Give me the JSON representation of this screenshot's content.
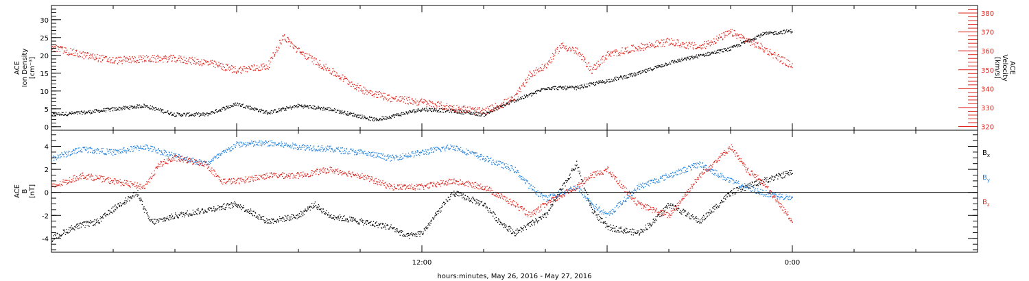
{
  "xaxis": {
    "label": "hours:minutes, May 26, 2016 - May 27, 2016",
    "range_hours": [
      0,
      30
    ],
    "tick_labels": [
      {
        "hour": 12,
        "text": "12:00"
      },
      {
        "hour": 24,
        "text": "0:00"
      }
    ]
  },
  "colors": {
    "black": "#000000",
    "red": "#e0231c",
    "blue": "#1e7fdc"
  },
  "chart_data": [
    {
      "type": "scatter",
      "panel": "top",
      "ylabel_lines": [
        "ACE",
        "Ion Density",
        "[cm⁻³]"
      ],
      "ylim": [
        -1,
        34
      ],
      "yticks": [
        0,
        5,
        10,
        15,
        20,
        25,
        30
      ],
      "y2label_lines": [
        "ACE",
        "Velocity",
        "[km/s]"
      ],
      "y2lim": [
        318,
        384
      ],
      "y2ticks": [
        320,
        330,
        340,
        350,
        360,
        370,
        380
      ],
      "series": [
        {
          "axis": "left",
          "color": "#000000",
          "x": [
            0,
            1,
            2,
            3,
            4,
            5,
            6,
            7,
            8,
            9,
            10,
            10.5,
            11,
            12,
            13,
            14,
            15,
            15.5,
            16,
            17,
            18,
            19,
            20,
            21,
            22,
            23,
            24
          ],
          "y": [
            3.5,
            4.0,
            5.0,
            6.0,
            3.5,
            3.5,
            6.5,
            4.0,
            6.0,
            5.0,
            3.0,
            2.0,
            3.0,
            5.0,
            4.5,
            3.5,
            7.5,
            9.0,
            11.0,
            11.0,
            13.0,
            15.0,
            18.0,
            20.0,
            22.0,
            26.0,
            27.0
          ]
        },
        {
          "axis": "right",
          "color": "#e0231c",
          "x": [
            0,
            1,
            2,
            3,
            4,
            5,
            6,
            7,
            7.5,
            8,
            9,
            10,
            11,
            12,
            13,
            14,
            15,
            15.5,
            16,
            16.5,
            17,
            17.5,
            18,
            19,
            20,
            21,
            22,
            23,
            24
          ],
          "y": [
            362,
            358,
            355,
            356,
            356,
            354,
            350,
            352,
            368,
            360,
            350,
            340,
            335,
            333,
            330,
            328,
            335,
            348,
            352,
            363,
            360,
            350,
            358,
            362,
            365,
            362,
            370,
            362,
            352
          ]
        }
      ]
    },
    {
      "type": "scatter",
      "panel": "bottom",
      "ylabel_lines": [
        "ACE",
        "B",
        "[nT]"
      ],
      "ylim": [
        -5.2,
        5.4
      ],
      "yticks": [
        -4,
        -2,
        0,
        2,
        4
      ],
      "zero_line": true,
      "legend": [
        "Bx",
        "By",
        "Bz"
      ],
      "series": [
        {
          "name": "Bx",
          "color": "#000000",
          "x": [
            0,
            0.7,
            1.5,
            2.2,
            2.8,
            3.0,
            3.2,
            3.4,
            4.0,
            5.0,
            6.0,
            7.0,
            8.0,
            8.5,
            9.0,
            10.0,
            11.0,
            11.5,
            12.0,
            13.0,
            14.0,
            14.5,
            15.0,
            16.0,
            17.0,
            17.5,
            18.0,
            19.0,
            19.5,
            20.0,
            21.0,
            22.0,
            23.0,
            24.0
          ],
          "y": [
            -4.0,
            -3.0,
            -2.5,
            -1.0,
            0.0,
            -1.5,
            -2.5,
            -2.5,
            -2.0,
            -1.5,
            -1.0,
            -2.5,
            -2.0,
            -1.0,
            -2.0,
            -2.5,
            -3.0,
            -3.8,
            -3.5,
            0.0,
            -1.0,
            -2.5,
            -3.5,
            -2.0,
            2.5,
            -1.5,
            -3.0,
            -3.5,
            -2.5,
            -1.0,
            -2.5,
            0.0,
            1.0,
            1.8
          ]
        },
        {
          "name": "By",
          "color": "#1e7fdc",
          "x": [
            0,
            1,
            2,
            3,
            4,
            5,
            6,
            7,
            8,
            9,
            10,
            11,
            12,
            13,
            14,
            15,
            15.5,
            16,
            17,
            17.5,
            18,
            19,
            20,
            21,
            22,
            23,
            24
          ],
          "y": [
            3.0,
            3.8,
            3.5,
            4.0,
            3.2,
            2.5,
            4.2,
            4.3,
            4.0,
            3.8,
            3.5,
            3.0,
            3.5,
            4.0,
            3.0,
            2.0,
            0.5,
            -0.5,
            0.5,
            -1.0,
            -2.0,
            0.5,
            1.5,
            2.5,
            1.0,
            0.0,
            -0.5
          ]
        },
        {
          "name": "Bz",
          "color": "#e0231c",
          "x": [
            0,
            1,
            2,
            3,
            3.5,
            4,
            5,
            5.5,
            6,
            7,
            8,
            9,
            10,
            11,
            12,
            13,
            14,
            15,
            15.5,
            16,
            17,
            17.5,
            18,
            19,
            20,
            21,
            22,
            22.5,
            23,
            24
          ],
          "y": [
            0.5,
            1.5,
            1.0,
            0.5,
            2.5,
            3.0,
            2.5,
            1.0,
            1.0,
            1.5,
            1.5,
            2.0,
            1.5,
            0.5,
            0.5,
            1.0,
            0.5,
            -1.0,
            -2.0,
            -1.0,
            0.5,
            1.5,
            2.0,
            -1.0,
            -2.0,
            1.5,
            4.0,
            2.0,
            1.0,
            -2.5
          ]
        }
      ]
    }
  ]
}
